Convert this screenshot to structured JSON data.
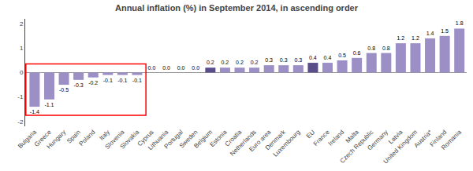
{
  "chart_data": {
    "type": "bar",
    "title": "Annual inflation (%) in September 2014, in ascending order",
    "categories": [
      "Bulgaria",
      "Greece",
      "Hungary",
      "Spain",
      "Poland",
      "Italy",
      "Slovenia",
      "Slovakia",
      "Cyprus",
      "Lithuania",
      "Portugal",
      "Sweden",
      "Belgium",
      "Estonia",
      "Croatia",
      "Netherlands",
      "Euro area",
      "Denmark",
      "Luxembourg",
      "EU",
      "France",
      "Ireland",
      "Malta",
      "Czech Republic",
      "Germany",
      "Latvia",
      "United Kingdom",
      "Austria*",
      "Finland",
      "Romania"
    ],
    "values": [
      -1.4,
      -1.1,
      -0.5,
      -0.3,
      -0.2,
      -0.1,
      -0.1,
      -0.1,
      0.0,
      0.0,
      0.0,
      0.0,
      0.2,
      0.2,
      0.2,
      0.2,
      0.3,
      0.3,
      0.3,
      0.4,
      0.4,
      0.5,
      0.6,
      0.8,
      0.8,
      1.2,
      1.2,
      1.4,
      1.5,
      1.8
    ],
    "value_labels": [
      "-1.4",
      "-1.1",
      "-0.5",
      "-0.3",
      "-0.2",
      "-0.1",
      "-0.1",
      "-0.1",
      "0.0",
      "0.0",
      "0.0",
      "0.0",
      "0.2",
      "0.2",
      "0.2",
      "0.2",
      "0.3",
      "0.3",
      "0.3",
      "0.4",
      "0.4",
      "0.5",
      "0.6",
      "0.8",
      "0.8",
      "1.2",
      "1.2",
      "1.4",
      "1.5",
      "1.8"
    ],
    "colors": [
      "#9b8fc5",
      "#9b8fc5",
      "#9b8fc5",
      "#9b8fc5",
      "#9b8fc5",
      "#9b8fc5",
      "#9b8fc5",
      "#9b8fc5",
      "#9b8fc5",
      "#9b8fc5",
      "#9b8fc5",
      "#9b8fc5",
      "#5a4e8a",
      "#9b8fc5",
      "#9b8fc5",
      "#9b8fc5",
      "#9b8fc5",
      "#9b8fc5",
      "#9b8fc5",
      "#5a4e8a",
      "#9b8fc5",
      "#9b8fc5",
      "#9b8fc5",
      "#9b8fc5",
      "#9b8fc5",
      "#9b8fc5",
      "#9b8fc5",
      "#9b8fc5",
      "#9b8fc5",
      "#9b8fc5"
    ],
    "ylim": [
      -2.2,
      2.2
    ],
    "yticks": [
      -2,
      -1,
      0,
      1,
      2
    ],
    "grid": false,
    "data_labels": true
  }
}
